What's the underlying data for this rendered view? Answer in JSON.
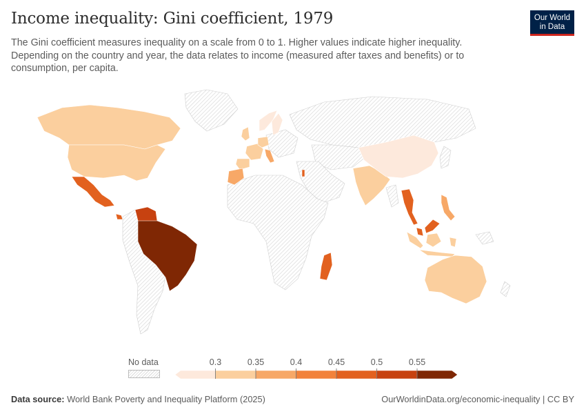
{
  "header": {
    "title": "Income inequality: Gini coefficient, 1979",
    "subtitle": "The Gini coefficient measures inequality on a scale from 0 to 1. Higher values indicate higher inequality. Depending on the country and year, the data relates to income (measured after taxes and benefits) or to consumption, per capita."
  },
  "logo": {
    "line1": "Our World",
    "line2": "in Data"
  },
  "colors": {
    "no_data_hatch": "#d9d9d9",
    "bins": [
      "#fde9dc",
      "#fbcf9e",
      "#f7a867",
      "#f2823b",
      "#e2611f",
      "#c74210",
      "#7f2704"
    ],
    "border": "#ffffff",
    "nodata_fill": "#f0f0f0"
  },
  "legend": {
    "no_data_label": "No data",
    "ticks": [
      "0.3",
      "0.35",
      "0.4",
      "0.45",
      "0.5",
      "0.55"
    ]
  },
  "chart_data": {
    "type": "choropleth",
    "year": 1979,
    "metric": "Gini coefficient",
    "scale": [
      0,
      1
    ],
    "bins": [
      {
        "from": null,
        "to": 0.3
      },
      {
        "from": 0.3,
        "to": 0.35
      },
      {
        "from": 0.35,
        "to": 0.4
      },
      {
        "from": 0.4,
        "to": 0.45
      },
      {
        "from": 0.45,
        "to": 0.5
      },
      {
        "from": 0.5,
        "to": 0.55
      },
      {
        "from": 0.55,
        "to": null
      }
    ],
    "countries": [
      {
        "name": "Canada",
        "bin": 1
      },
      {
        "name": "United States",
        "bin": 1
      },
      {
        "name": "Mexico",
        "bin": 4
      },
      {
        "name": "Costa Rica",
        "bin": 4
      },
      {
        "name": "Venezuela",
        "bin": 5
      },
      {
        "name": "Brazil",
        "bin": 6
      },
      {
        "name": "Norway",
        "bin": 0
      },
      {
        "name": "Sweden",
        "bin": 0
      },
      {
        "name": "United Kingdom",
        "bin": 1
      },
      {
        "name": "France",
        "bin": 1
      },
      {
        "name": "Spain",
        "bin": 1
      },
      {
        "name": "Germany",
        "bin": 1
      },
      {
        "name": "Italy",
        "bin": 2
      },
      {
        "name": "Morocco",
        "bin": 2
      },
      {
        "name": "Israel",
        "bin": 4
      },
      {
        "name": "India",
        "bin": 1
      },
      {
        "name": "China",
        "bin": 0
      },
      {
        "name": "Thailand",
        "bin": 4
      },
      {
        "name": "Malaysia",
        "bin": 4
      },
      {
        "name": "Indonesia",
        "bin": 1
      },
      {
        "name": "Philippines",
        "bin": 2
      },
      {
        "name": "Madagascar",
        "bin": 4
      },
      {
        "name": "Australia",
        "bin": 1
      }
    ]
  },
  "footer": {
    "source_label": "Data source:",
    "source_text": "World Bank Poverty and Inequality Platform (2025)",
    "url_text": "OurWorldinData.org/economic-inequality | CC BY"
  }
}
